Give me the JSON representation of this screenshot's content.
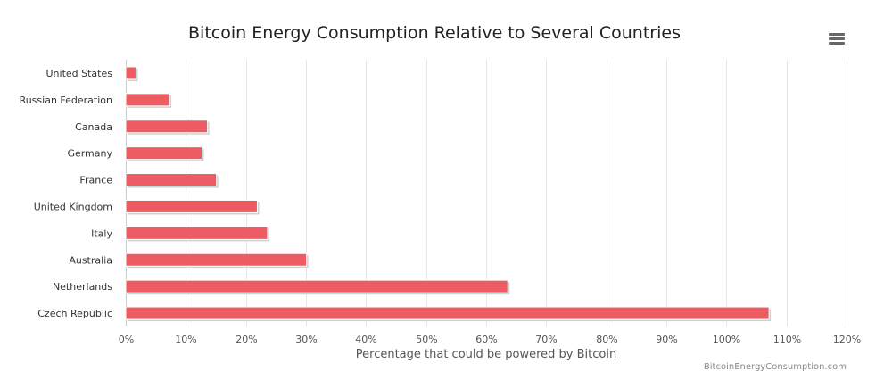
{
  "chart_data": {
    "type": "bar",
    "orientation": "horizontal",
    "title": "Bitcoin Energy Consumption Relative to Several Countries",
    "xlabel": "Percentage that could be powered by Bitcoin",
    "categories": [
      "United States",
      "Russian Federation",
      "Canada",
      "Germany",
      "France",
      "United Kingdom",
      "Italy",
      "Australia",
      "Netherlands",
      "Czech Republic"
    ],
    "values": [
      1.7,
      7.3,
      13.6,
      12.7,
      15.1,
      21.9,
      23.6,
      30.1,
      63.6,
      107.1
    ],
    "ticks": [
      "0%",
      "10%",
      "20%",
      "30%",
      "40%",
      "50%",
      "60%",
      "70%",
      "80%",
      "90%",
      "100%",
      "110%",
      "120%"
    ],
    "xlim": [
      0,
      120
    ],
    "grid": true,
    "color": "#ec5c62"
  },
  "credits": "BitcoinEnergyConsumption.com"
}
